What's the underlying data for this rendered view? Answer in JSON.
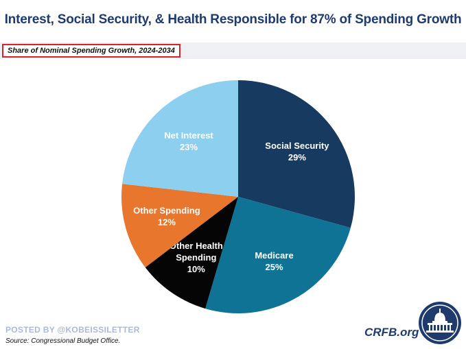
{
  "header": {
    "title": "Interest, Social Security, & Health Responsible for 87% of Spending Growth",
    "subtitle": "Share of Nominal Spending Growth, 2024-2034"
  },
  "footer": {
    "watermark": "POSTED BY @KOBEISSILETTER",
    "source": "Source: Congressional Budget Office.",
    "brand": "CRFB.org",
    "logo_icon": "capitol-building-icon"
  },
  "chart_data": {
    "type": "pie",
    "title": "Interest, Social Security, & Health Responsible for 87% of Spending Growth",
    "subtitle": "Share of Nominal Spending Growth, 2024-2034",
    "start_angle_deg": 0,
    "direction": "clockwise",
    "slices": [
      {
        "label_lines": [
          "Social Security"
        ],
        "value_label": "29%",
        "value": 29,
        "color": "#173a60"
      },
      {
        "label_lines": [
          "Medicare"
        ],
        "value_label": "25%",
        "value": 25,
        "color": "#0f7396"
      },
      {
        "label_lines": [
          "Other Health",
          "Spending"
        ],
        "value_label": "10%",
        "value": 10,
        "color": "#050505"
      },
      {
        "label_lines": [
          "Other Spending"
        ],
        "value_label": "12%",
        "value": 12,
        "color": "#e8762d"
      },
      {
        "label_lines": [
          "Net Interest"
        ],
        "value_label": "23%",
        "value": 23,
        "color": "#8ccfee"
      }
    ]
  }
}
